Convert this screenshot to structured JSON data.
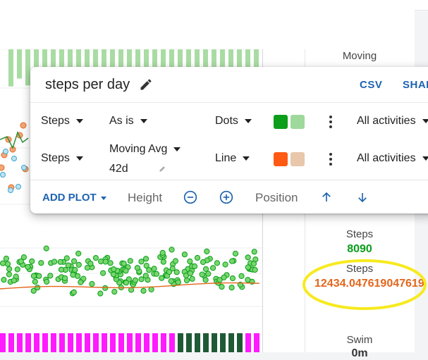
{
  "popup": {
    "title": "steps per day",
    "csv_label": "CSV",
    "share_label": "SHARE",
    "rows": [
      {
        "metric": "Steps",
        "transform": "As is",
        "transform_sub": "",
        "style": "Dots",
        "colors": [
          "#0a9e1a",
          "#9ed99b"
        ],
        "filter": "All activities"
      },
      {
        "metric": "Steps",
        "transform": "Moving Avg",
        "transform_sub": "42d",
        "style": "Line",
        "colors": [
          "#ff5a14",
          "#e8c7aa"
        ],
        "filter": "All activities"
      }
    ],
    "add_plot_label": "ADD PLOT",
    "height_label": "Height",
    "position_label": "Position"
  },
  "side": {
    "moving_label": "Moving",
    "steps_label_1": "Steps",
    "steps_value_1": "8090",
    "steps_label_2": "Steps",
    "steps_value_2": "12434.047619047619",
    "swim_label": "Swim",
    "swim_value": "0m"
  },
  "colors": {
    "accent": "#1e63b0",
    "green": "#0a9e1a",
    "orange": "#e2661c",
    "highlight": "#f7ea1f",
    "magenta": "#ff1aff",
    "dark_green": "#1f5a36"
  }
}
